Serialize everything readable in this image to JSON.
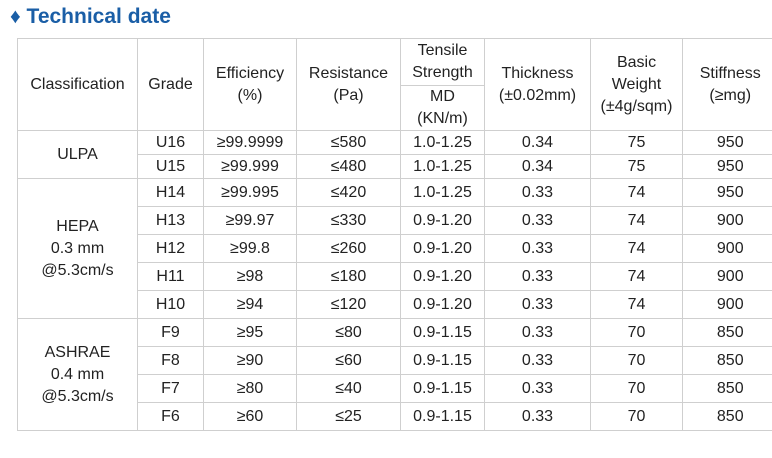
{
  "title": "♦ Technical date",
  "table": {
    "header": {
      "classification": [
        "Classification"
      ],
      "grade": [
        "Grade"
      ],
      "efficiency": [
        "Efficiency",
        "(%)"
      ],
      "resistance": [
        "Resistance",
        "(Pa)"
      ],
      "tensile": [
        "Tensile",
        "Strength"
      ],
      "tensile_sub": [
        "MD",
        "(KN/m)"
      ],
      "thickness": [
        "Thickness",
        "(±0.02mm)"
      ],
      "weight": [
        "Basic",
        "Weight",
        "(±4g/sqm)"
      ],
      "stiffness": [
        "Stiffness",
        "(≥mg)"
      ]
    },
    "groups": [
      {
        "label": [
          "ULPA"
        ],
        "rows": [
          [
            "U16",
            "≥99.9999",
            "≤580",
            "1.0-1.25",
            "0.34",
            "75",
            "950"
          ],
          [
            "U15",
            "≥99.999",
            "≤480",
            "1.0-1.25",
            "0.34",
            "75",
            "950"
          ]
        ]
      },
      {
        "label": [
          "HEPA",
          "0.3 mm",
          "@5.3cm/s"
        ],
        "rows": [
          [
            "H14",
            "≥99.995",
            "≤420",
            "1.0-1.25",
            "0.33",
            "74",
            "950"
          ],
          [
            "H13",
            "≥99.97",
            "≤330",
            "0.9-1.20",
            "0.33",
            "74",
            "900"
          ],
          [
            "H12",
            "≥99.8",
            "≤260",
            "0.9-1.20",
            "0.33",
            "74",
            "900"
          ],
          [
            "H11",
            "≥98",
            "≤180",
            "0.9-1.20",
            "0.33",
            "74",
            "900"
          ],
          [
            "H10",
            "≥94",
            "≤120",
            "0.9-1.20",
            "0.33",
            "74",
            "900"
          ]
        ]
      },
      {
        "label": [
          "ASHRAE",
          "0.4 mm",
          "@5.3cm/s"
        ],
        "rows": [
          [
            "F9",
            "≥95",
            "≤80",
            "0.9-1.15",
            "0.33",
            "70",
            "850"
          ],
          [
            "F8",
            "≥90",
            "≤60",
            "0.9-1.15",
            "0.33",
            "70",
            "850"
          ],
          [
            "F7",
            "≥80",
            "≤40",
            "0.9-1.15",
            "0.33",
            "70",
            "850"
          ],
          [
            "F6",
            "≥60",
            "≤25",
            "0.9-1.15",
            "0.33",
            "70",
            "850"
          ]
        ]
      }
    ]
  }
}
